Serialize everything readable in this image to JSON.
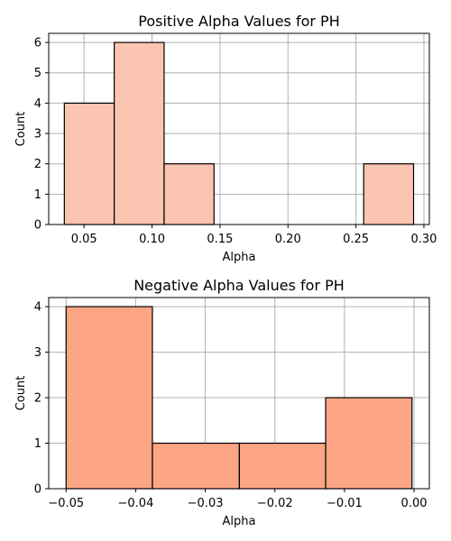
{
  "chart_data": [
    {
      "type": "bar",
      "title": "Positive Alpha Values for PH",
      "xlabel": "Alpha",
      "ylabel": "Count",
      "bin_edges": [
        0.0355,
        0.0722,
        0.1089,
        0.1456,
        0.1823,
        0.219,
        0.2557,
        0.2924
      ],
      "values": [
        4,
        6,
        2,
        0,
        0,
        0,
        2
      ],
      "xlim": [
        0.024,
        0.304
      ],
      "ylim": [
        0,
        6.3
      ],
      "xticks": [
        0.05,
        0.1,
        0.15,
        0.2,
        0.25,
        0.3
      ],
      "xtick_labels": [
        "0.05",
        "0.10",
        "0.15",
        "0.20",
        "0.25",
        "0.30"
      ],
      "yticks": [
        0,
        1,
        2,
        3,
        4,
        5,
        6
      ],
      "ytick_labels": [
        "0",
        "1",
        "2",
        "3",
        "4",
        "5",
        "6"
      ],
      "grid": true,
      "bar_color": "#fcc5b1"
    },
    {
      "type": "bar",
      "title": "Negative Alpha Values for PH",
      "xlabel": "Alpha",
      "ylabel": "Count",
      "bin_edges": [
        -0.05,
        -0.0376,
        -0.0251,
        -0.0127,
        -0.0003
      ],
      "values": [
        4,
        1,
        1,
        2
      ],
      "xlim": [
        -0.0525,
        0.0022
      ],
      "ylim": [
        0,
        4.2
      ],
      "xticks": [
        -0.05,
        -0.04,
        -0.03,
        -0.02,
        -0.01,
        0.0
      ],
      "xtick_labels": [
        "−0.05",
        "−0.04",
        "−0.03",
        "−0.02",
        "−0.01",
        "0.00"
      ],
      "yticks": [
        0,
        1,
        2,
        3,
        4
      ],
      "ytick_labels": [
        "0",
        "1",
        "2",
        "3",
        "4"
      ],
      "grid": true,
      "bar_color": "#fca584"
    }
  ]
}
